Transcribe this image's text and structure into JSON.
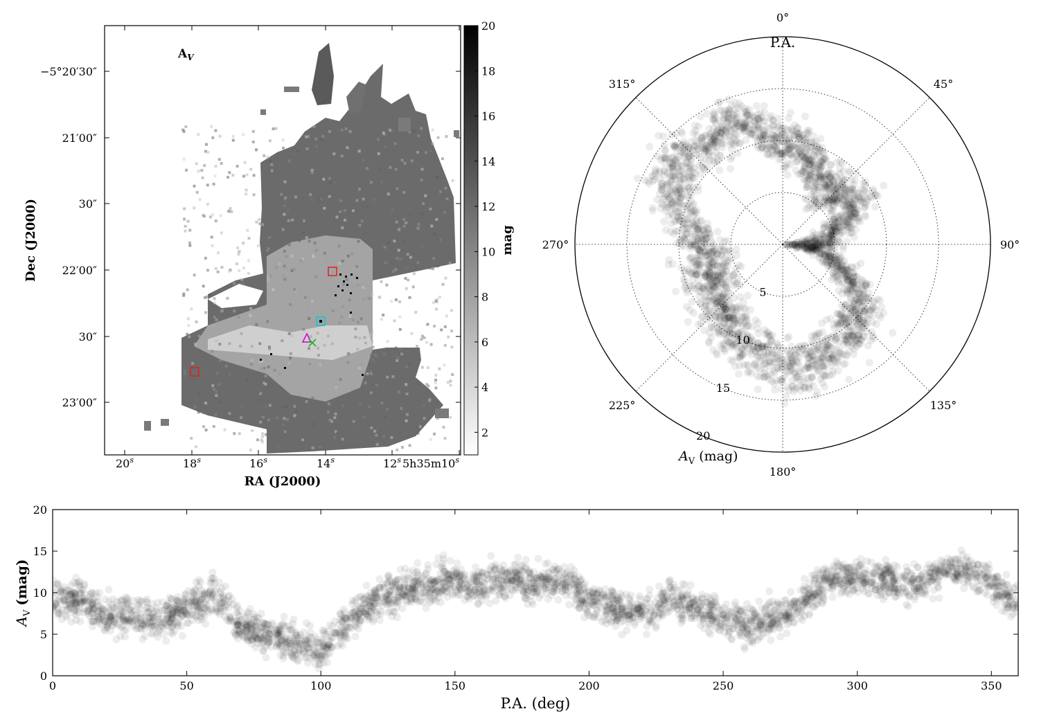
{
  "figure": {
    "map": {
      "panel_label": "A",
      "panel_label_sub": "V",
      "xlabel": "RA (J2000)",
      "ylabel": "Dec (J2000)",
      "ra_ticks": [
        {
          "main": "20",
          "sup": "s",
          "prefix": ""
        },
        {
          "main": "18",
          "sup": "s",
          "prefix": ""
        },
        {
          "main": "16",
          "sup": "s",
          "prefix": ""
        },
        {
          "main": "14",
          "sup": "s",
          "prefix": ""
        },
        {
          "main": "12",
          "sup": "s",
          "prefix": ""
        },
        {
          "main": "10",
          "sup": "s",
          "prefix": "5h35m"
        }
      ],
      "dec_ticks": [
        "−5°20′30″",
        "21′00″",
        "30″",
        "22′00″",
        "30″",
        "23′00″"
      ],
      "colorbar": {
        "label": "mag",
        "range": [
          1,
          20
        ],
        "ticks": [
          "2",
          "4",
          "6",
          "8",
          "10",
          "12",
          "14",
          "16",
          "18",
          "20"
        ]
      },
      "markers": [
        {
          "shape": "square",
          "color": "#e02020"
        },
        {
          "shape": "square",
          "color": "#e02020"
        },
        {
          "shape": "square",
          "color": "#00c8d8"
        },
        {
          "shape": "triangle",
          "color": "#d000d0"
        },
        {
          "shape": "cross",
          "color": "#20b020"
        }
      ]
    },
    "polar": {
      "title": "P.A.",
      "angle_ticks": [
        "0°",
        "45°",
        "90°",
        "135°",
        "180°",
        "225°",
        "270°",
        "315°"
      ],
      "radial_ticks": [
        "5",
        "10",
        "15",
        "20"
      ],
      "rmax": 20,
      "radial_label": "A",
      "radial_label_sub": "V",
      "radial_label_unit": "(mag)"
    },
    "scatter": {
      "xlabel": "P.A. (deg)",
      "ylabel": "A",
      "ylabel_sub": "V",
      "ylabel_unit": "(mag)",
      "xlim": [
        0,
        360
      ],
      "ylim": [
        0,
        20
      ],
      "xticks": [
        "0",
        "50",
        "100",
        "150",
        "200",
        "250",
        "300",
        "350"
      ],
      "yticks": [
        "0",
        "5",
        "10",
        "15",
        "20"
      ]
    }
  },
  "chart_data": [
    {
      "type": "heatmap",
      "title": "",
      "xlabel": "RA (J2000)",
      "ylabel": "Dec (J2000)",
      "colorbar_label": "mag",
      "value_range": [
        1,
        20
      ]
    },
    {
      "type": "scatter",
      "subtype": "polar",
      "title": "P.A.",
      "radial_label": "AV (mag)",
      "radial_range": [
        0,
        20
      ],
      "trend_theta_deg": [
        0,
        15,
        30,
        45,
        60,
        75,
        90,
        100,
        115,
        130,
        145,
        160,
        175,
        190,
        205,
        220,
        235,
        250,
        265,
        280,
        295,
        310,
        325,
        340,
        355,
        360
      ],
      "trend_r": [
        10,
        9,
        7,
        7,
        8,
        5,
        3,
        3,
        7,
        10,
        11,
        11.5,
        12,
        11,
        10,
        9,
        8,
        7.5,
        7.5,
        9,
        12,
        13,
        12,
        13,
        10,
        10
      ]
    },
    {
      "type": "scatter",
      "title": "",
      "xlabel": "P.A. (deg)",
      "ylabel": "AV (mag)",
      "xlim": [
        0,
        360
      ],
      "ylim": [
        0,
        20
      ],
      "trend_x": [
        0,
        10,
        20,
        30,
        40,
        50,
        60,
        70,
        80,
        90,
        100,
        110,
        120,
        130,
        140,
        150,
        160,
        170,
        180,
        190,
        200,
        210,
        220,
        230,
        240,
        250,
        260,
        270,
        280,
        290,
        300,
        310,
        320,
        330,
        340,
        350,
        360
      ],
      "trend_y": [
        9.5,
        9,
        7,
        7.5,
        6.5,
        8,
        10,
        6,
        5,
        4,
        3,
        6.5,
        9,
        10.5,
        11,
        11.5,
        11,
        12,
        11,
        11.5,
        9.5,
        8,
        7.5,
        9,
        8.5,
        7,
        6,
        7,
        9,
        11.5,
        12,
        11.5,
        11,
        12,
        13,
        11,
        8.5
      ]
    }
  ]
}
